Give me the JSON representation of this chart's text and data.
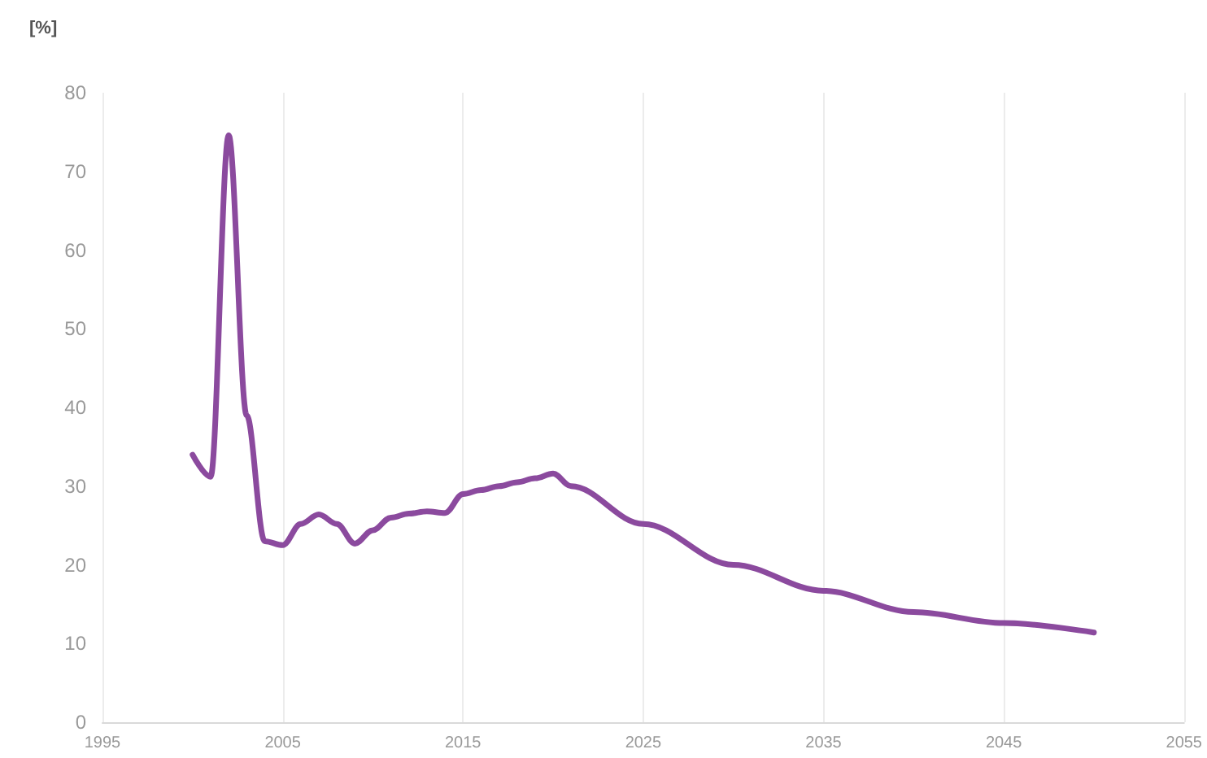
{
  "chart_data": {
    "type": "line",
    "ylabel": "[%]",
    "x": [
      2000,
      2001,
      2002,
      2003,
      2004,
      2005,
      2006,
      2007,
      2008,
      2009,
      2010,
      2011,
      2012,
      2013,
      2014,
      2015,
      2016,
      2017,
      2018,
      2019,
      2020,
      2021,
      2025,
      2030,
      2035,
      2040,
      2045,
      2050
    ],
    "series": [
      {
        "color": "#8b4a9e",
        "values": [
          34,
          31.2,
          74.6,
          39,
          23,
          22.5,
          25.2,
          26.4,
          25.2,
          22.7,
          24.4,
          26,
          26.5,
          26.8,
          26.6,
          29,
          29.5,
          30,
          30.5,
          31,
          31.6,
          30,
          25.2,
          20,
          16.7,
          14,
          12.6,
          11.4
        ]
      }
    ],
    "xlim": [
      1995,
      2055
    ],
    "xticks": [
      1995,
      2005,
      2015,
      2025,
      2035,
      2045,
      2055
    ],
    "ylim": [
      0,
      80
    ],
    "yticks": [
      0,
      10,
      20,
      30,
      40,
      50,
      60,
      70,
      80
    ],
    "grid": "x",
    "marker": "none",
    "line_style": "solid"
  }
}
